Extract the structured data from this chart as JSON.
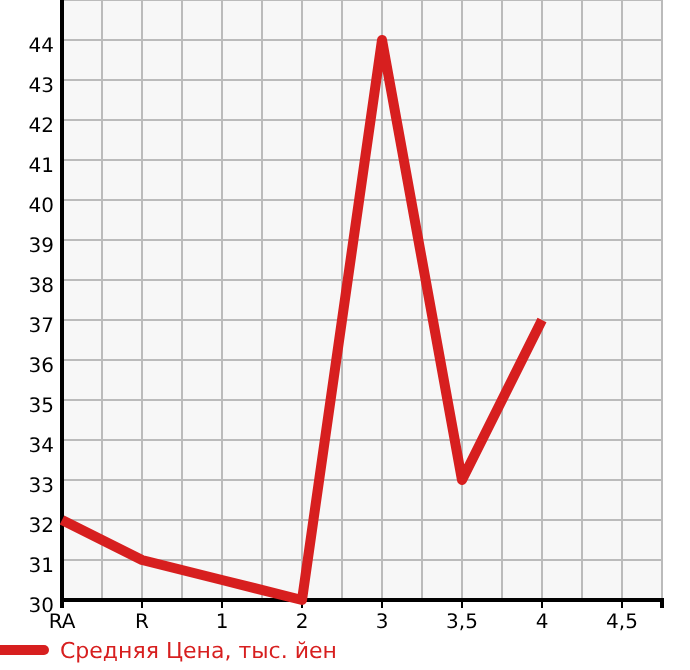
{
  "chart_data": {
    "type": "line",
    "categories": [
      "RA",
      "R",
      "1",
      "2",
      "3",
      "3,5",
      "4",
      "4,5"
    ],
    "series": [
      {
        "name": "Средняя Цена, тыс. йен",
        "color": "#d71f1f",
        "values": [
          32,
          31,
          30.5,
          30,
          44,
          33,
          37,
          null
        ]
      }
    ],
    "ylim": [
      30,
      45
    ],
    "yticks": [
      30,
      31,
      32,
      33,
      34,
      35,
      36,
      37,
      38,
      39,
      40,
      41,
      42,
      43,
      44,
      {
        "value": 45,
        "label": null
      }
    ],
    "grid": true,
    "legend": "bottom left",
    "marker": "none",
    "line_style": "solid"
  }
}
